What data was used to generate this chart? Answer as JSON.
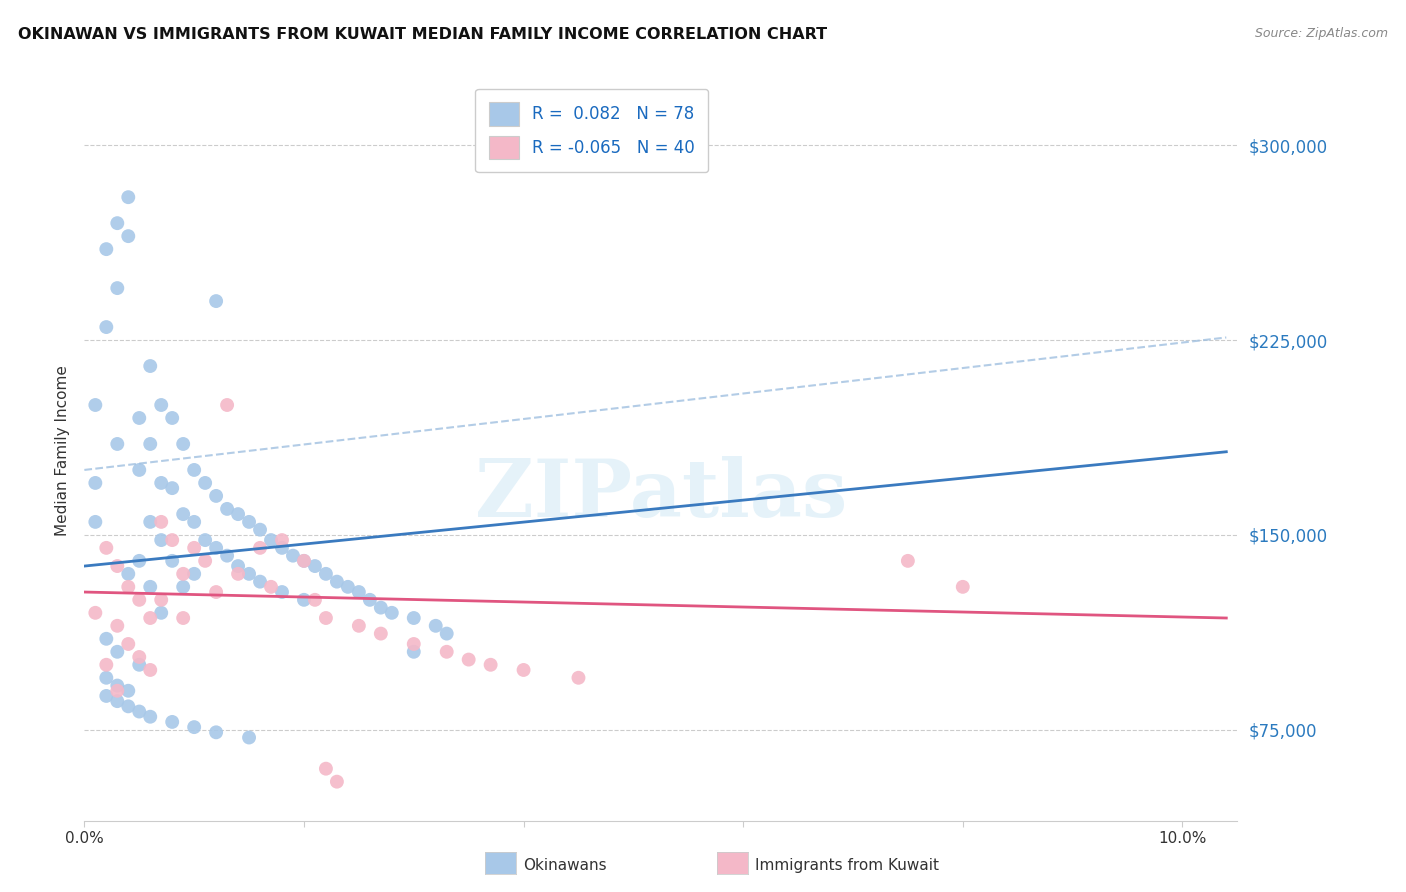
{
  "title": "OKINAWAN VS IMMIGRANTS FROM KUWAIT MEDIAN FAMILY INCOME CORRELATION CHART",
  "source": "Source: ZipAtlas.com",
  "ylabel": "Median Family Income",
  "y_ticks": [
    75000,
    150000,
    225000,
    300000
  ],
  "y_tick_labels": [
    "$75,000",
    "$150,000",
    "$225,000",
    "$300,000"
  ],
  "xlim": [
    0.0,
    0.105
  ],
  "ylim": [
    40000,
    325000
  ],
  "watermark": "ZIPatlas",
  "blue_color": "#a8c8e8",
  "pink_color": "#f4b8c8",
  "line_blue": "#3a7abf",
  "line_pink": "#e05580",
  "line_dash_color": "#a0c0e0",
  "okinawan_x": [
    0.001,
    0.001,
    0.002,
    0.002,
    0.002,
    0.003,
    0.003,
    0.003,
    0.003,
    0.004,
    0.004,
    0.004,
    0.005,
    0.005,
    0.005,
    0.005,
    0.006,
    0.006,
    0.006,
    0.006,
    0.007,
    0.007,
    0.007,
    0.007,
    0.008,
    0.008,
    0.008,
    0.009,
    0.009,
    0.009,
    0.01,
    0.01,
    0.01,
    0.011,
    0.011,
    0.012,
    0.012,
    0.013,
    0.013,
    0.014,
    0.014,
    0.015,
    0.015,
    0.016,
    0.016,
    0.017,
    0.018,
    0.018,
    0.019,
    0.02,
    0.02,
    0.021,
    0.022,
    0.023,
    0.024,
    0.025,
    0.026,
    0.027,
    0.028,
    0.03,
    0.03,
    0.032,
    0.033,
    0.012,
    0.002,
    0.003,
    0.004,
    0.001,
    0.002,
    0.003,
    0.004,
    0.005,
    0.006,
    0.008,
    0.01,
    0.012,
    0.015
  ],
  "okinawan_y": [
    170000,
    155000,
    260000,
    230000,
    110000,
    270000,
    245000,
    185000,
    105000,
    280000,
    265000,
    135000,
    195000,
    175000,
    140000,
    100000,
    215000,
    185000,
    155000,
    130000,
    200000,
    170000,
    148000,
    120000,
    195000,
    168000,
    140000,
    185000,
    158000,
    130000,
    175000,
    155000,
    135000,
    170000,
    148000,
    165000,
    145000,
    160000,
    142000,
    158000,
    138000,
    155000,
    135000,
    152000,
    132000,
    148000,
    145000,
    128000,
    142000,
    140000,
    125000,
    138000,
    135000,
    132000,
    130000,
    128000,
    125000,
    122000,
    120000,
    118000,
    105000,
    115000,
    112000,
    240000,
    95000,
    92000,
    90000,
    200000,
    88000,
    86000,
    84000,
    82000,
    80000,
    78000,
    76000,
    74000,
    72000
  ],
  "kuwait_x": [
    0.001,
    0.002,
    0.002,
    0.003,
    0.003,
    0.003,
    0.004,
    0.004,
    0.005,
    0.005,
    0.006,
    0.006,
    0.007,
    0.007,
    0.008,
    0.009,
    0.009,
    0.01,
    0.011,
    0.012,
    0.013,
    0.014,
    0.016,
    0.017,
    0.018,
    0.02,
    0.021,
    0.022,
    0.025,
    0.027,
    0.03,
    0.033,
    0.035,
    0.037,
    0.04,
    0.045,
    0.075,
    0.08,
    0.022,
    0.023
  ],
  "kuwait_y": [
    120000,
    145000,
    100000,
    138000,
    115000,
    90000,
    130000,
    108000,
    125000,
    103000,
    118000,
    98000,
    155000,
    125000,
    148000,
    135000,
    118000,
    145000,
    140000,
    128000,
    200000,
    135000,
    145000,
    130000,
    148000,
    140000,
    125000,
    118000,
    115000,
    112000,
    108000,
    105000,
    102000,
    100000,
    98000,
    95000,
    140000,
    130000,
    60000,
    55000
  ],
  "blue_line_x0": 0.0,
  "blue_line_y0": 138000,
  "blue_line_x1": 0.104,
  "blue_line_y1": 182000,
  "pink_line_x0": 0.0,
  "pink_line_y0": 128000,
  "pink_line_x1": 0.104,
  "pink_line_y1": 118000,
  "dash_line_x0": 0.0,
  "dash_line_y0": 175000,
  "dash_line_x1": 0.104,
  "dash_line_y1": 226000
}
